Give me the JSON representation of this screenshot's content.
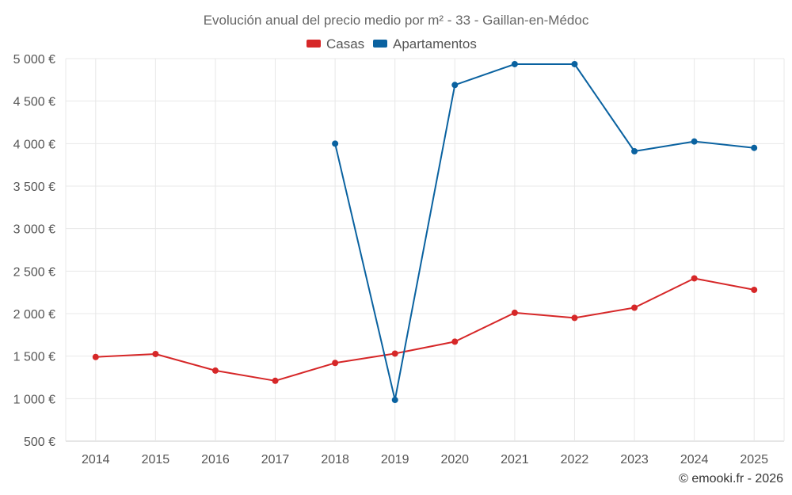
{
  "chart_data": {
    "type": "line",
    "title": "Evolución anual del precio medio por m² - 33 - Gaillan-en-Médoc",
    "categories": [
      "2014",
      "2015",
      "2016",
      "2017",
      "2018",
      "2019",
      "2020",
      "2021",
      "2022",
      "2023",
      "2024",
      "2025"
    ],
    "series": [
      {
        "name": "Casas",
        "color": "#d62728",
        "values": [
          1490,
          1525,
          1330,
          1210,
          1420,
          1530,
          1670,
          2010,
          1950,
          2070,
          2415,
          2280
        ]
      },
      {
        "name": "Apartamentos",
        "color": "#0a62a0",
        "values": [
          null,
          null,
          null,
          null,
          4000,
          985,
          4690,
          4935,
          4935,
          3910,
          4025,
          3950
        ]
      }
    ],
    "ylim": [
      500,
      5000
    ],
    "yticks": [
      500,
      1000,
      1500,
      2000,
      2500,
      3000,
      3500,
      4000,
      4500,
      5000
    ],
    "ytick_labels": [
      "500 €",
      "1 000 €",
      "1 500 €",
      "2 000 €",
      "2 500 €",
      "3 000 €",
      "3 500 €",
      "4 000 €",
      "4 500 €",
      "5 000 €"
    ],
    "xlabel": "",
    "ylabel": "",
    "legend_position": "top-center",
    "grid": true
  },
  "footer": "© emooki.fr - 2026"
}
